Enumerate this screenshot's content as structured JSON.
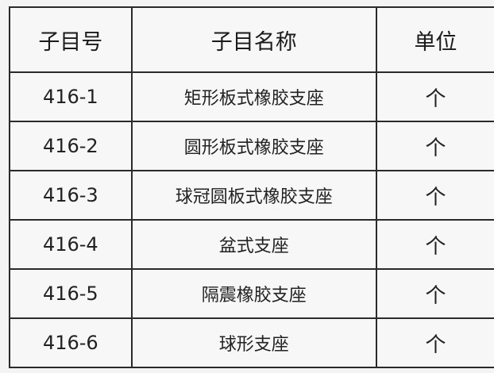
{
  "table": {
    "headers": [
      "子目号",
      "子目名称",
      "单位"
    ],
    "rows": [
      [
        "416-1",
        "矩形板式橡胶支座",
        "个"
      ],
      [
        "416-2",
        "圆形板式橡胶支座",
        "个"
      ],
      [
        "416-3",
        "球冠圆板式橡胶支座",
        "个"
      ],
      [
        "416-4",
        "盆式支座",
        "个"
      ],
      [
        "416-5",
        "隔震橡胶支座",
        "个"
      ],
      [
        "416-6",
        "球形支座",
        "个"
      ]
    ]
  }
}
